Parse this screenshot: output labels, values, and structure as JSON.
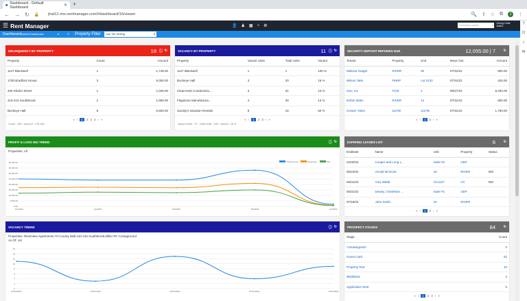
{
  "browser": {
    "tab_title": "Dashboard - Default Dashboard",
    "url": "jhat12.rmx.rentmanager.com/#/dashboard/16/viewer",
    "avatar_letter": "J"
  },
  "app": {
    "brand": "Rent Manager",
    "command_placeholder": "Command Launch",
    "user_line1": "Johnny Hotst",
    "user_line2": "Jhat12"
  },
  "subbar": {
    "dashboard_label": "Dashboard",
    "dashboard_select": "Default Dashboard",
    "filter_label": "Property Filter",
    "filter_select": "Use Tile Setting"
  },
  "delinquency": {
    "title": "DELINQUENCY BY PROPERTY",
    "count": "18",
    "headers": [
      "Property",
      "Count",
      "Amount"
    ],
    "rows": [
      [
        "1127 Blackwell",
        "1",
        "1,748.00"
      ],
      [
        "1700 Bradford House",
        "3",
        "6,000.00"
      ],
      [
        "206 Shafor Street",
        "1",
        "1,028.00"
      ],
      [
        "410-415 Southbrook",
        "2",
        "1,960.00"
      ],
      [
        "Buckeye Hall",
        "8",
        "5,600.00"
      ]
    ],
    "pages": [
      "1",
      "2",
      "3",
      "4"
    ],
    "footer": "Count : 165 , Amount : 175,182"
  },
  "vacancy": {
    "title": "VACANCY BY PROPERTY",
    "count": "11",
    "headers": [
      "Property",
      "Vacant Units",
      "Total Units",
      "Vacant"
    ],
    "rows": [
      [
        "1127 Blackwell",
        "1",
        "1",
        "100 %"
      ],
      [
        "Buckeye Hall",
        "3",
        "20",
        "15 %"
      ],
      [
        "Clearcreek Condominiu...",
        "3",
        "31",
        "10 %"
      ],
      [
        "Flagstone Manufacture...",
        "4",
        "30",
        "13 %"
      ],
      [
        "Jacoby's Vacation Rentals",
        "8",
        "16",
        "50 %"
      ]
    ],
    "pages": [
      "1",
      "2",
      "3"
    ],
    "footer": "Vacant Units : 37 , Total Units : 200 , Vacant : 18 %"
  },
  "deposit": {
    "title": "SECURITY DEPOSIT REFUNDS DUE",
    "count": "12,055.00 | 7",
    "headers": [
      "Tenant",
      "Property",
      "Unit",
      "Move Out",
      "Amount"
    ],
    "rows": [
      [
        "Melissa Yeager",
        "RIVER",
        "20",
        "07/31/22",
        "800.00"
      ],
      [
        "Wilson Taite",
        "FMHP",
        "Lot #120",
        "07/31/22",
        "425.00"
      ],
      [
        "Geo, Inc",
        "TCM",
        "1",
        "09/27/23",
        "8,400.00"
      ],
      [
        "Esther Bden",
        "RIVER",
        "12",
        "07/31/22",
        "800.00"
      ],
      [
        "Cesare Yates",
        "1127B",
        "1127B",
        "07/31/22",
        "1,750.00"
      ]
    ],
    "pages": [
      "1",
      "2"
    ]
  },
  "leases": {
    "title": "EXPIRING LEASES LIST",
    "count": "6",
    "headers": [
      "EndDate",
      "Name",
      "Unit",
      "Property",
      "Status"
    ],
    "rows": [
      [
        "04/30/22",
        "Cooper and Long L...",
        "Suite #2",
        "CBP",
        ""
      ],
      [
        "05/23/22",
        "Arnold McGuire",
        "15",
        "RIVER",
        "MO"
      ],
      [
        "05/31/22",
        "Amy Webb",
        "CC1127",
        "CC",
        "MO"
      ],
      [
        "05/31/22",
        "Dewey, Cheetham ...",
        "Suite #1",
        "CBP",
        ""
      ],
      [
        "07/18/22",
        "John Smith",
        "10",
        "RIVER",
        ""
      ]
    ],
    "pages": [
      "1",
      "2"
    ]
  },
  "prospects": {
    "title": "PROSPECT STAGES",
    "count": "84",
    "headers": [
      "Stage",
      "Count"
    ],
    "rows": [
      [
        "<Unassigned>",
        "0"
      ],
      [
        "Guest Card",
        "52"
      ],
      [
        "Property Tour",
        "10"
      ],
      [
        "Waitlisted",
        "4"
      ],
      [
        "Application Sent",
        "5"
      ]
    ],
    "pages": [
      "1",
      "2",
      "3"
    ]
  },
  "pl_trend": {
    "title": "PROFIT & LOSS NOI TREND",
    "subtitle": "Properties: All",
    "colors": {
      "income": "#1e88e5",
      "expense": "#fb8c00",
      "noi": "#43a047"
    }
  },
  "vacancy_trend": {
    "title": "VACANCY TREND",
    "subtitle": "Properties: Riverview Apartments,Tri-County Mall,410-415 Southbrook,Miller RV Campground",
    "subtitle2": "As Of: 1st"
  },
  "chart_data": [
    {
      "type": "line",
      "title": "PROFIT & LOSS NOI TREND",
      "x": [
        "Dec2021",
        "Jan2022",
        "Feb2022",
        "Mar2022",
        "Apr2022"
      ],
      "ylim": [
        0,
        40000
      ],
      "yticks": [
        "40,000.00",
        "35,000.00",
        "30,000.00",
        "25,000.00",
        "20,000.00",
        "15,000.00",
        "10,000.00",
        "5,000.00",
        "0.00"
      ],
      "series": [
        {
          "name": "Total Income",
          "values": [
            25000,
            24000,
            24000,
            33000,
            2000
          ]
        },
        {
          "name": "Expenses",
          "values": [
            17000,
            17500,
            17000,
            21000,
            1000
          ]
        },
        {
          "name": "NOI",
          "values": [
            12000,
            13000,
            12500,
            15000,
            800
          ]
        }
      ]
    },
    {
      "type": "line",
      "title": "VACANCY TREND",
      "x": [
        "03/01/2021",
        "01/01/2022",
        "04/01/2022",
        "07/01/2022",
        "10/01/2022"
      ],
      "ylim": [
        0,
        16
      ],
      "yticks": [
        "16",
        "14",
        "12",
        "10",
        "8",
        "6",
        "4",
        "2",
        "0"
      ],
      "series": [
        {
          "name": "",
          "values": [
            11,
            3,
            13,
            4,
            9
          ]
        }
      ]
    }
  ]
}
